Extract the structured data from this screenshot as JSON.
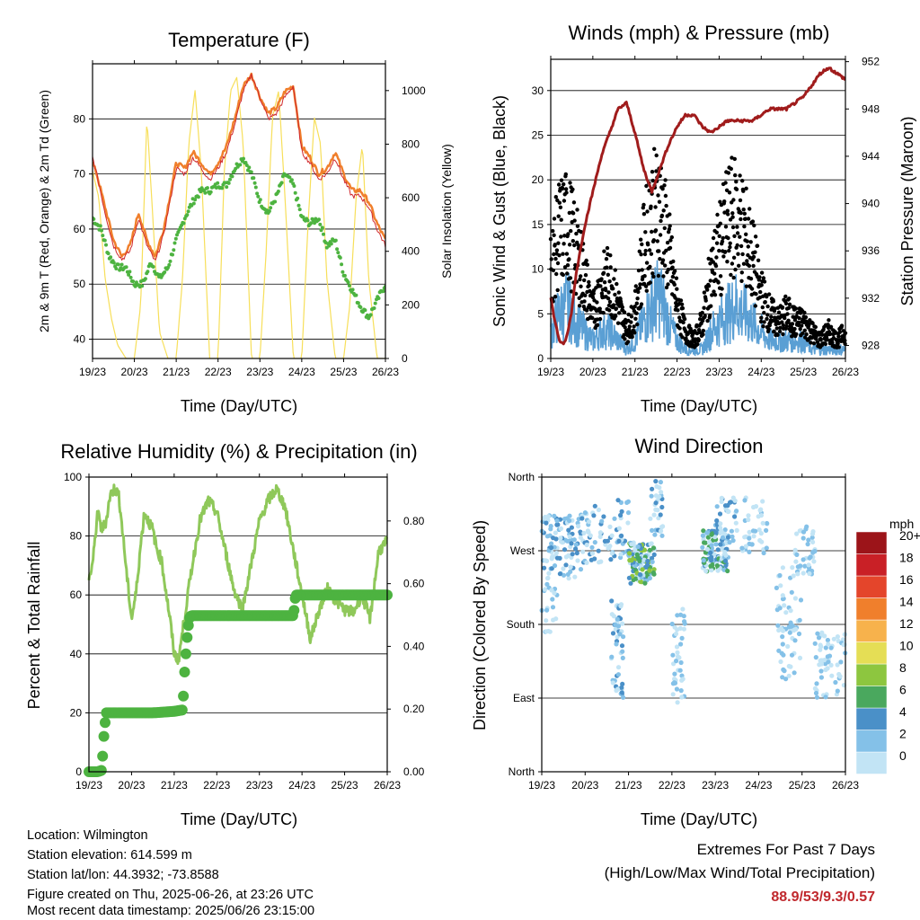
{
  "footer": {
    "location": "Location: Wilmington",
    "elevation": "Station elevation: 614.599 m",
    "latlon": "Station lat/lon: 44.3932; -73.8588",
    "created": "Figure created on Thu, 2025-06-26, at 23:26 UTC",
    "recent": "Most recent data timestamp: 2025/06/26 23:15:00"
  },
  "extremes": {
    "title": "Extremes For Past 7 Days",
    "subtitle": "(High/Low/Max Wind/Total Precipitation)",
    "values": "88.9/53/9.3/0.57",
    "color": "#c0282d"
  },
  "chart_data": [
    {
      "type": "line",
      "title": "Temperature (F)",
      "xlabel": "Time (Day/UTC)",
      "ylabel": "2m & 9m T (Red, Orange) & 2m Td (Green)",
      "y2label": "Solar Insolation (Yellow)",
      "x_ticks": [
        "19/23",
        "20/23",
        "21/23",
        "22/23",
        "23/23",
        "24/23",
        "25/23",
        "26/23"
      ],
      "xlim": [
        0,
        7
      ],
      "ylim": [
        36.5,
        90
      ],
      "y_ticks": [
        40,
        50,
        60,
        70,
        80
      ],
      "y2lim": [
        0,
        1100
      ],
      "y2_ticks": [
        0,
        200,
        400,
        600,
        800,
        1000
      ],
      "grid": true,
      "series": [
        {
          "color": "#f07f2c",
          "x": [
            0,
            0.1,
            0.3,
            0.5,
            0.7,
            0.9,
            1,
            1.1,
            1.3,
            1.5,
            1.7,
            1.9,
            2,
            2.2,
            2.4,
            2.6,
            2.8,
            3,
            3.2,
            3.4,
            3.6,
            3.8,
            4,
            4.2,
            4.4,
            4.6,
            4.8,
            5,
            5.2,
            5.4,
            5.6,
            5.8,
            6,
            6.2,
            6.4,
            6.6,
            6.8,
            7
          ],
          "values": [
            72,
            70,
            64,
            58,
            55,
            57,
            60,
            63,
            58,
            55,
            60,
            68,
            72,
            71,
            74,
            72,
            70,
            72,
            75,
            80,
            86,
            88,
            84,
            81,
            82,
            85,
            86,
            75,
            73,
            70,
            71,
            74,
            70,
            67,
            67,
            65,
            61,
            58
          ]
        },
        {
          "color": "#d0282c",
          "x": [
            0,
            0.1,
            0.3,
            0.5,
            0.7,
            0.9,
            1,
            1.1,
            1.3,
            1.5,
            1.7,
            1.9,
            2,
            2.2,
            2.4,
            2.6,
            2.8,
            3,
            3.2,
            3.4,
            3.6,
            3.8,
            4,
            4.2,
            4.4,
            4.6,
            4.8,
            5,
            5.2,
            5.4,
            5.6,
            5.8,
            6,
            6.2,
            6.4,
            6.6,
            6.8,
            7
          ],
          "values": [
            73,
            70,
            63,
            57,
            54.5,
            56,
            59,
            62,
            57,
            54,
            59,
            67,
            71,
            70,
            73,
            71,
            69,
            71,
            74,
            79,
            85,
            88,
            84,
            80,
            81,
            84,
            86,
            74,
            72,
            69,
            70,
            73,
            69,
            66,
            66,
            64,
            60,
            57
          ]
        },
        {
          "color": "#4db340",
          "x": [
            0,
            0.2,
            0.4,
            0.6,
            0.8,
            1,
            1.2,
            1.4,
            1.6,
            1.8,
            2,
            2.2,
            2.4,
            2.6,
            2.8,
            3,
            3.2,
            3.4,
            3.6,
            3.8,
            4,
            4.2,
            4.4,
            4.6,
            4.8,
            5,
            5.2,
            5.4,
            5.6,
            5.8,
            6,
            6.2,
            6.4,
            6.6,
            6.8,
            7
          ],
          "values": [
            62,
            60,
            55,
            53,
            53,
            50,
            50,
            54,
            51,
            53,
            58,
            62,
            65,
            67,
            67,
            68,
            68,
            71,
            73,
            70,
            65,
            63,
            66,
            70,
            68,
            62,
            61,
            62,
            57,
            58,
            52,
            49,
            46,
            44,
            47,
            50
          ]
        },
        {
          "color": "#f7df5a",
          "axis": "y2",
          "x": [
            0,
            0.15,
            0.3,
            0.45,
            0.6,
            0.8,
            1,
            1.15,
            1.3,
            1.45,
            1.6,
            1.8,
            2,
            2.15,
            2.3,
            2.45,
            2.6,
            2.8,
            3,
            3.15,
            3.3,
            3.45,
            3.6,
            3.8,
            4,
            4.15,
            4.3,
            4.45,
            4.6,
            4.8,
            5,
            5.15,
            5.3,
            5.45,
            5.6,
            5.8,
            6,
            6.15,
            6.3,
            6.45,
            6.6,
            6.8,
            7
          ],
          "values": [
            700,
            600,
            300,
            150,
            50,
            0,
            0,
            200,
            900,
            500,
            100,
            0,
            0,
            300,
            800,
            1000,
            700,
            0,
            0,
            700,
            1000,
            1050,
            800,
            0,
            0,
            400,
            900,
            1000,
            600,
            0,
            0,
            500,
            900,
            800,
            300,
            0,
            0,
            200,
            600,
            800,
            300,
            0,
            0
          ]
        }
      ]
    },
    {
      "type": "scatter",
      "title": "Winds (mph) & Pressure (mb)",
      "xlabel": "Time (Day/UTC)",
      "ylabel": "Sonic Wind & Gust (Blue, Black)",
      "y2label": "Station Pressure (Maroon)",
      "x_ticks": [
        "19/23",
        "20/23",
        "21/23",
        "22/23",
        "23/23",
        "24/23",
        "25/23",
        "26/23"
      ],
      "xlim": [
        0,
        7
      ],
      "ylim": [
        0,
        33.5
      ],
      "y_ticks": [
        0,
        5,
        10,
        15,
        20,
        25,
        30
      ],
      "y2lim": [
        926.9,
        952.2
      ],
      "y2_ticks": [
        928,
        932,
        936,
        940,
        944,
        948,
        952
      ],
      "grid": true,
      "series": [
        {
          "color": "#000000",
          "x": [
            0,
            0.2,
            0.4,
            0.6,
            0.8,
            1,
            1.2,
            1.4,
            1.6,
            1.8,
            2,
            2.2,
            2.4,
            2.6,
            2.8,
            3,
            3.2,
            3.4,
            3.6,
            3.8,
            4,
            4.2,
            4.4,
            4.6,
            4.8,
            5,
            5.2,
            5.4,
            5.6,
            5.8,
            6,
            6.2,
            6.4,
            6.6,
            6.8,
            7
          ],
          "values": [
            10,
            14,
            15,
            12,
            9,
            5,
            8,
            9,
            6,
            3,
            5,
            12,
            16,
            17,
            12,
            6,
            3,
            2,
            4,
            9,
            12,
            15,
            16,
            14,
            11,
            7,
            5,
            4,
            5,
            4,
            4,
            3,
            2,
            3,
            2,
            3
          ]
        },
        {
          "color": "#5a9fd4",
          "x": [
            0,
            0.2,
            0.4,
            0.6,
            0.8,
            1,
            1.2,
            1.4,
            1.6,
            1.8,
            2,
            2.2,
            2.4,
            2.6,
            2.8,
            3,
            3.2,
            3.4,
            3.6,
            3.8,
            4,
            4.2,
            4.4,
            4.6,
            4.8,
            5,
            5.2,
            5.4,
            5.6,
            5.8,
            6,
            6.2,
            6.4,
            6.6,
            6.8,
            7
          ],
          "values": [
            3,
            5,
            6,
            4,
            3,
            2,
            3,
            3,
            2,
            1,
            2,
            4,
            6,
            7,
            4,
            2,
            1,
            1,
            1,
            3,
            4,
            5,
            6,
            5,
            4,
            3,
            2,
            2,
            2,
            2,
            2,
            1,
            1,
            1,
            1,
            1
          ]
        },
        {
          "color": "#a01c1c",
          "axis": "y2",
          "x": [
            0,
            0.1,
            0.2,
            0.3,
            0.4,
            0.5,
            0.6,
            0.8,
            1,
            1.2,
            1.4,
            1.6,
            1.8,
            2,
            2.2,
            2.4,
            2.6,
            2.8,
            3,
            3.2,
            3.4,
            3.6,
            3.8,
            4,
            4.2,
            4.4,
            4.6,
            4.8,
            5,
            5.2,
            5.4,
            5.6,
            5.8,
            6,
            6.2,
            6.4,
            6.6,
            6.8,
            7
          ],
          "values": [
            932,
            930,
            928.5,
            928,
            929,
            931,
            934,
            938,
            941,
            944,
            946,
            948,
            948.5,
            946,
            943,
            941,
            943,
            945,
            946.5,
            947.5,
            947.5,
            946.5,
            946,
            946.5,
            947,
            947,
            947,
            947,
            947.5,
            948,
            948,
            948,
            948.5,
            949,
            950,
            951,
            951.5,
            951,
            950.5
          ]
        }
      ]
    },
    {
      "type": "line",
      "title": "Relative Humidity (%) & Precipitation (in)",
      "xlabel": "Time (Day/UTC)",
      "ylabel": "Percent & Total Rainfall",
      "x_ticks": [
        "19/23",
        "20/23",
        "21/23",
        "22/23",
        "23/23",
        "24/23",
        "25/23",
        "26/23"
      ],
      "xlim": [
        0,
        7
      ],
      "ylim": [
        0,
        100
      ],
      "y_ticks": [
        0,
        20,
        40,
        60,
        80,
        100
      ],
      "y2lim": [
        0,
        0.94
      ],
      "y2_ticks": [
        "0.00",
        "0.20",
        "0.40",
        "0.60",
        "0.80"
      ],
      "grid": true,
      "series": [
        {
          "color": "#8fc85a",
          "x": [
            0,
            0.1,
            0.2,
            0.3,
            0.4,
            0.5,
            0.6,
            0.7,
            0.8,
            0.9,
            1,
            1.1,
            1.2,
            1.3,
            1.4,
            1.5,
            1.6,
            1.7,
            1.8,
            1.9,
            2,
            2.1,
            2.2,
            2.4,
            2.6,
            2.8,
            3,
            3.2,
            3.4,
            3.6,
            3.8,
            4,
            4.2,
            4.4,
            4.6,
            4.8,
            5,
            5.2,
            5.4,
            5.6,
            5.8,
            6,
            6.2,
            6.4,
            6.6,
            6.8,
            7
          ],
          "values": [
            65,
            72,
            88,
            82,
            85,
            94,
            96,
            94,
            80,
            65,
            52,
            60,
            75,
            88,
            85,
            82,
            75,
            72,
            62,
            52,
            40,
            38,
            48,
            68,
            85,
            92,
            88,
            75,
            62,
            55,
            70,
            85,
            92,
            96,
            90,
            75,
            60,
            45,
            55,
            62,
            58,
            55,
            54,
            60,
            52,
            75,
            78
          ]
        },
        {
          "color": "#4db340",
          "x": [
            0,
            0.2,
            0.3,
            0.35,
            0.4,
            0.5,
            1,
            1.5,
            2,
            2.2,
            2.25,
            2.3,
            2.35,
            2.4,
            2.5,
            3,
            3.5,
            4,
            4.5,
            4.8,
            4.85,
            5,
            5.5,
            6,
            6.5,
            7
          ],
          "values": [
            0,
            0,
            0.5,
            12,
            20,
            20,
            20,
            20,
            20.5,
            21,
            35,
            45,
            52,
            53,
            53,
            53,
            53,
            53,
            53,
            53,
            60,
            60,
            60,
            60,
            60,
            60
          ]
        }
      ]
    },
    {
      "type": "scatter",
      "title": "Wind Direction",
      "xlabel": "Time (Day/UTC)",
      "ylabel": "Direction (Colored By Speed)",
      "x_ticks": [
        "19/23",
        "20/23",
        "21/23",
        "22/23",
        "23/23",
        "24/23",
        "25/23",
        "26/23"
      ],
      "y_ticks": [
        "North",
        "West",
        "South",
        "East",
        "North"
      ],
      "xlim": [
        0,
        7
      ],
      "ylim": [
        0,
        360
      ],
      "grid": true,
      "colorbar": {
        "title": "mph",
        "labels": [
          "0",
          "2",
          "4",
          "6",
          "8",
          "10",
          "12",
          "14",
          "16",
          "18",
          "20+"
        ],
        "colors": [
          "#c2e4f5",
          "#84c1e8",
          "#4a90c8",
          "#4aa85e",
          "#8dc63f",
          "#e5de55",
          "#f7b24c",
          "#f07f2c",
          "#e4452b",
          "#c92026",
          "#9c1419"
        ]
      }
    }
  ]
}
